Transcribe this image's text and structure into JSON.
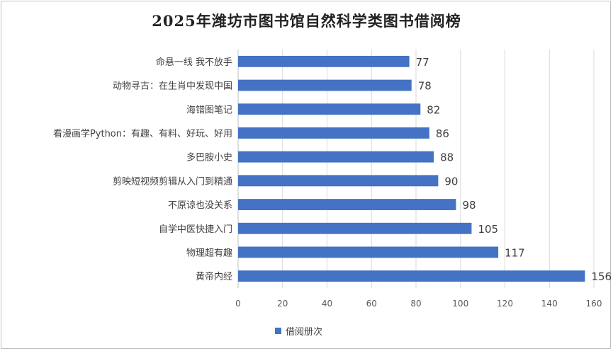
{
  "chart_data": {
    "type": "bar",
    "orientation": "horizontal",
    "title": "2025年潍坊市图书馆自然科学类图书借阅榜",
    "categories": [
      "命悬一线 我不放手",
      "动物寻古：在生肖中发现中国",
      "海错图笔记",
      "看漫画学Python：有趣、有料、好玩、好用",
      "多巴胺小史",
      "剪映短视频剪辑从入门到精通",
      "不原谅也没关系",
      "自学中医快捷入门",
      "物理超有趣",
      "黄帝内经"
    ],
    "series": [
      {
        "name": "借阅册次",
        "values": [
          77,
          78,
          82,
          86,
          88,
          90,
          98,
          105,
          117,
          156
        ]
      }
    ],
    "x_ticks": [
      0,
      20,
      40,
      60,
      80,
      100,
      120,
      140,
      160
    ],
    "xlim": [
      0,
      160
    ],
    "xlabel": "",
    "ylabel": "",
    "grid": true,
    "data_labels": true,
    "legend_position": "bottom",
    "bar_color": "#4472c4"
  }
}
